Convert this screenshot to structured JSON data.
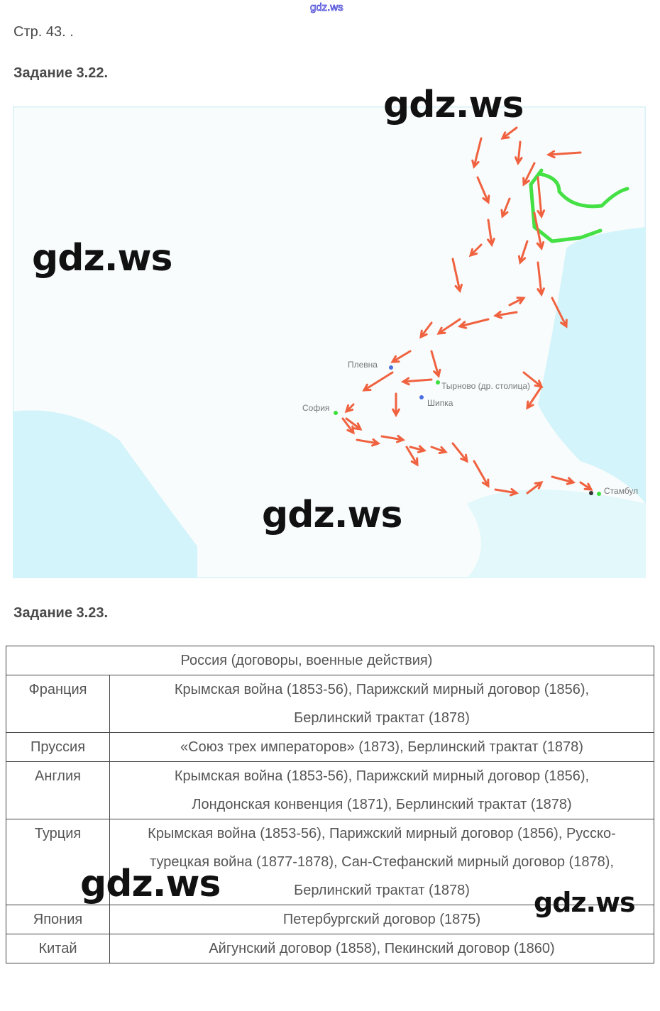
{
  "watermark": "gdz.ws",
  "page_ref": "Стр. 43. .",
  "task1": "Задание 3.22.",
  "map": {
    "labels": {
      "plevna": "Плевна",
      "tyrnovo": "Тырново (др. столица)",
      "shipka": "Шипка",
      "sofia": "София",
      "istanbul": "Стамбул"
    },
    "colors": {
      "arrows": "#f0623f",
      "border": "#44e044",
      "water": "#c9f1f8"
    }
  },
  "task2": "Задание 3.23.",
  "table": {
    "header": "Россия (договоры, военные действия)",
    "rows": [
      {
        "country": "Франция",
        "text": "Крымская война (1853-56), Парижский мирный договор (1856), Берлинский трактат (1878)"
      },
      {
        "country": "Пруссия",
        "text": "«Союз трех императоров» (1873), Берлинский трактат (1878)"
      },
      {
        "country": "Англия",
        "text": "Крымская война (1853-56), Парижский мирный договор (1856), Лондонская конвенция (1871), Берлинский трактат (1878)"
      },
      {
        "country": "Турция",
        "text": "Крымская война (1853-56), Парижский мирный договор (1856), Русско-турецкая война (1877-1878), Сан-Стефанский мирный договор (1878), Берлинский трактат (1878)"
      },
      {
        "country": "Япония",
        "text": "Петербургский договор (1875)"
      },
      {
        "country": "Китай",
        "text": "Айгунский договор (1858), Пекинский договор (1860)"
      }
    ]
  }
}
